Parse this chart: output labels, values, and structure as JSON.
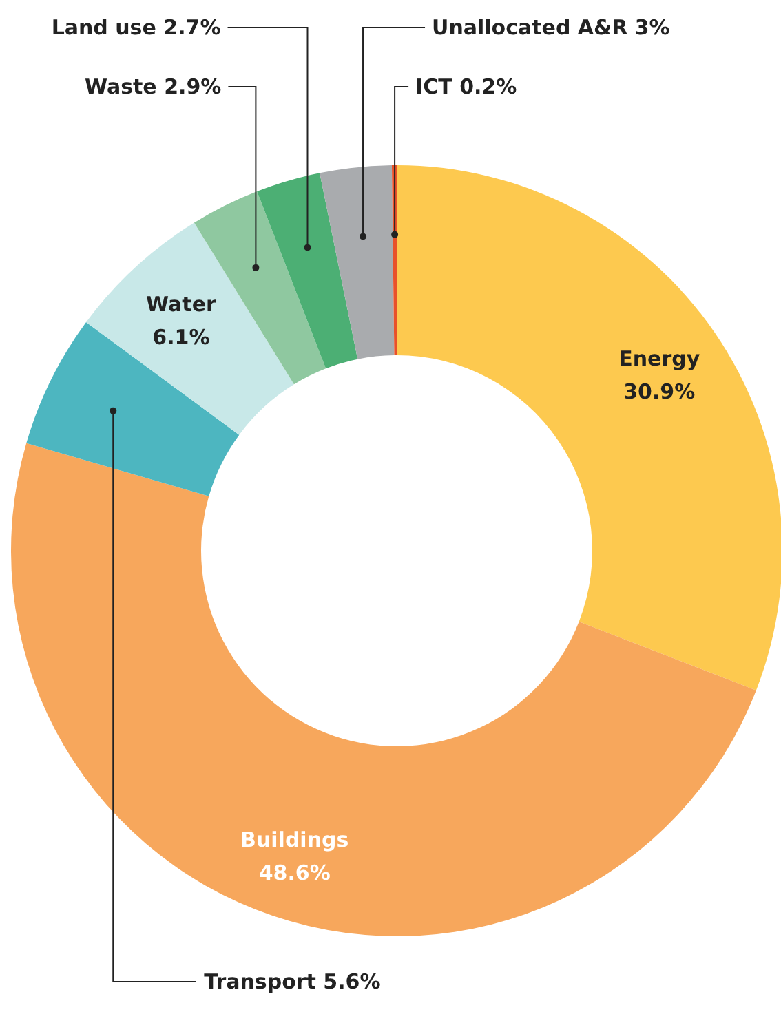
{
  "chart_data": {
    "type": "donut",
    "categories": [
      "Energy",
      "Buildings",
      "Transport",
      "Water",
      "Waste",
      "Land use",
      "Unallocated A&R",
      "ICT"
    ],
    "values": [
      30.9,
      48.6,
      5.6,
      6.1,
      2.9,
      2.7,
      3,
      0.2
    ],
    "value_labels": [
      "30.9%",
      "48.6%",
      "5.6%",
      "6.1%",
      "2.9%",
      "2.7%",
      "3%",
      "0.2%"
    ],
    "colors": [
      "#fdc94f",
      "#f7a75c",
      "#4db6c0",
      "#c8e8e8",
      "#8fc8a0",
      "#4caf74",
      "#a9abae",
      "#e8512a"
    ]
  }
}
